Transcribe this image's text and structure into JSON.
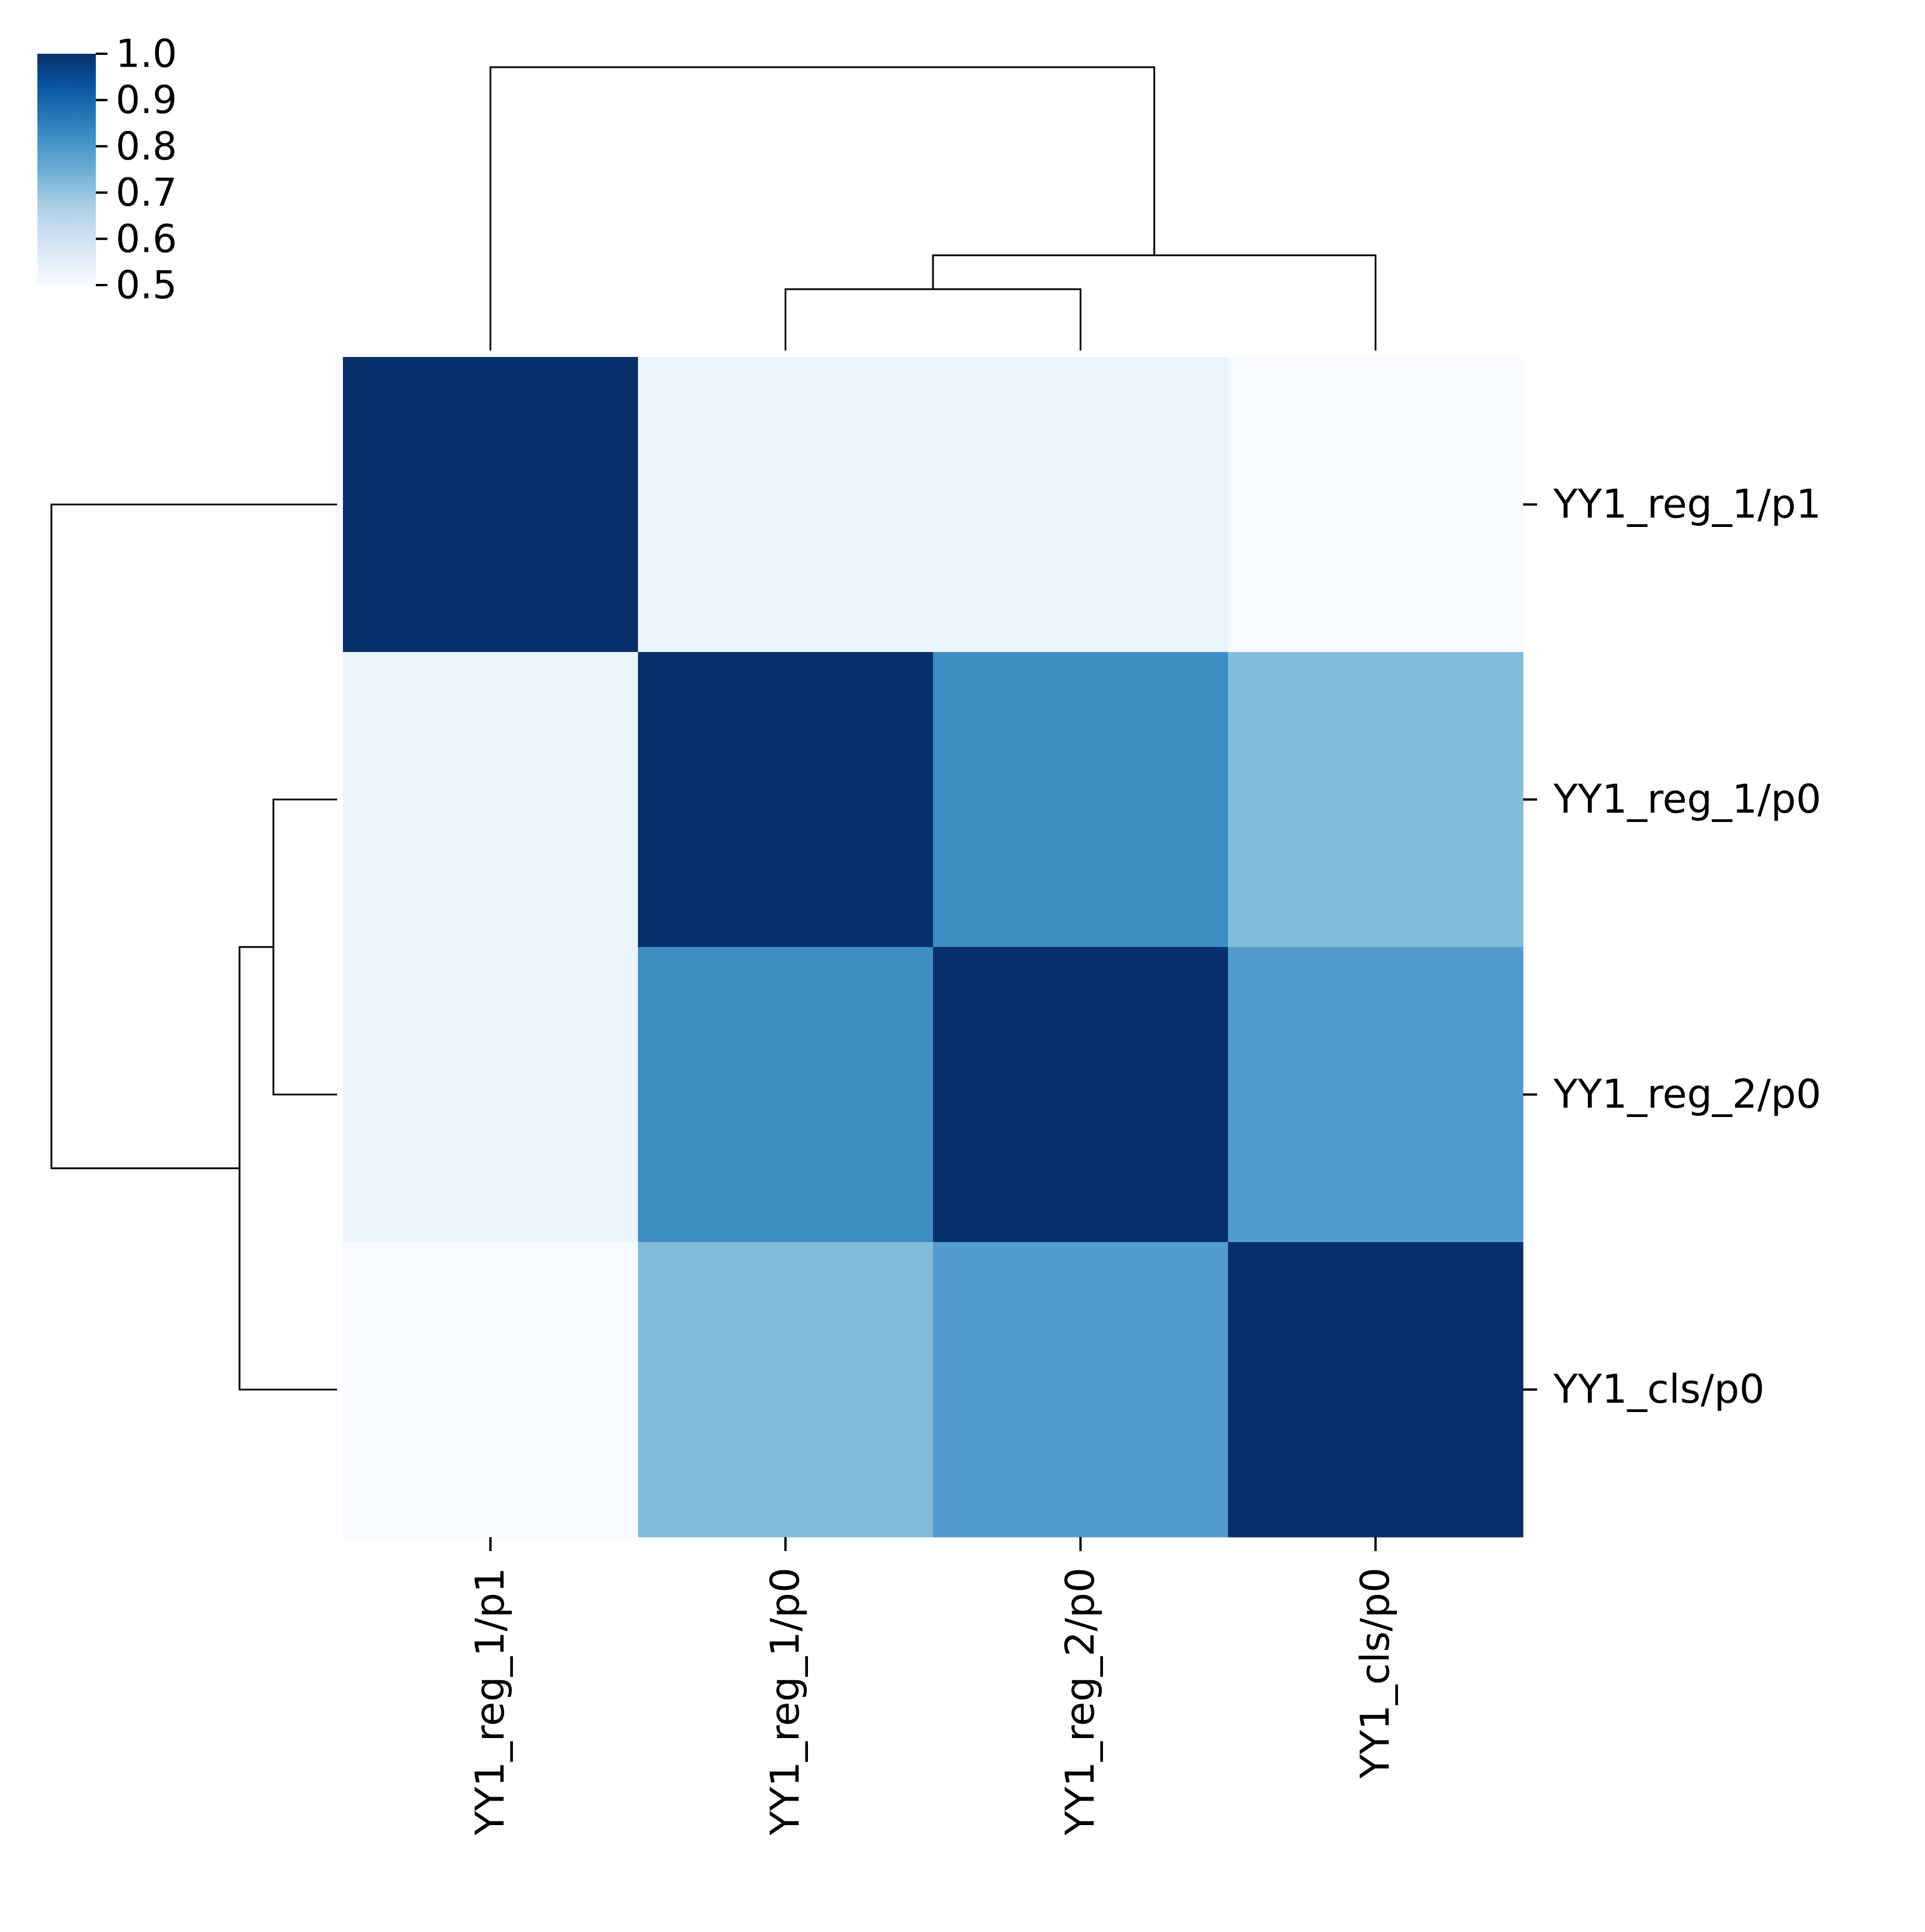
{
  "chart_data": {
    "type": "heatmap",
    "title": "",
    "xlabel": "",
    "ylabel": "",
    "row_labels": [
      "YY1_reg_1/p1",
      "YY1_reg_1/p0",
      "YY1_reg_2/p0",
      "YY1_cls/p0"
    ],
    "col_labels": [
      "YY1_reg_1/p1",
      "YY1_reg_1/p0",
      "YY1_reg_2/p0",
      "YY1_cls/p0"
    ],
    "values": [
      [
        1.0,
        0.53,
        0.53,
        0.5
      ],
      [
        0.53,
        1.0,
        0.82,
        0.72
      ],
      [
        0.53,
        0.82,
        1.0,
        0.79
      ],
      [
        0.5,
        0.72,
        0.79,
        1.0
      ]
    ],
    "colorbar": {
      "colormap": "Blues",
      "range": [
        0.5,
        1.0
      ],
      "ticks": [
        "0.5",
        "0.6",
        "0.7",
        "0.8",
        "0.9",
        "1.0"
      ],
      "placement": "top-left"
    },
    "row_dendrogram": true,
    "col_dendrogram": true,
    "grid": false
  }
}
